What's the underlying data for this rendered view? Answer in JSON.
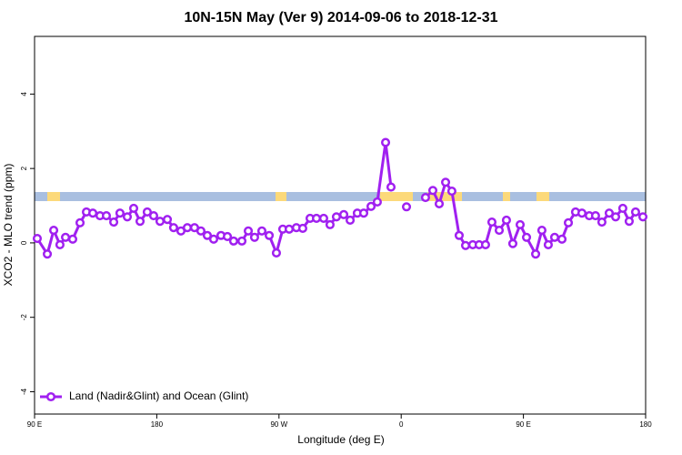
{
  "chart_data": {
    "type": "line",
    "title": "10N-15N May (Ver 9)   2014-09-06 to 2018-12-31",
    "x_label": "Longitude (deg E)",
    "y_label": "XCO2 - MLO trend (ppm)",
    "xlim": [
      90,
      540
    ],
    "ylim": [
      -4.6,
      5.55
    ],
    "xticks": [
      {
        "value": 90,
        "label": "90 E"
      },
      {
        "value": 180,
        "label": "180"
      },
      {
        "value": 270,
        "label": "90 W"
      },
      {
        "value": 360,
        "label": "0"
      },
      {
        "value": 450,
        "label": "90 E"
      },
      {
        "value": 540,
        "label": "180"
      }
    ],
    "yticks": [
      -4,
      -2,
      0,
      2,
      4
    ],
    "legend": "bottom-left",
    "x": [
      92.0,
      99.4,
      104.1,
      108.7,
      112.8,
      118.1,
      123.5,
      128.2,
      132.9,
      138.2,
      142.9,
      148.3,
      152.9,
      158.3,
      163.0,
      167.7,
      173.0,
      177.7,
      182.4,
      187.8,
      192.4,
      197.8,
      202.5,
      207.8,
      212.5,
      217.2,
      221.9,
      227.3,
      232.0,
      236.6,
      242.7,
      247.4,
      252.0,
      257.4,
      262.8,
      268.1,
      272.8,
      277.5,
      282.8,
      287.5,
      292.9,
      297.6,
      302.9,
      307.6,
      312.3,
      317.7,
      322.4,
      327.7,
      332.4,
      337.8,
      342.4,
      348.5,
      352.5,
      358.0,
      363.9,
      371.0,
      377.9,
      383.3,
      388.0,
      392.7,
      397.3,
      402.7,
      407.4,
      412.7,
      417.4,
      422.1,
      426.8,
      432.2,
      437.5,
      442.2,
      447.6,
      452.3,
      459.0,
      463.6,
      468.3,
      473.0,
      478.4,
      483.1,
      488.4,
      493.1,
      498.5,
      503.1,
      507.8,
      513.2,
      517.9,
      523.2,
      527.9,
      532.6,
      538.0
    ],
    "series": [
      {
        "name": "Land (Nadir&Glint) and Ocean (Glint)",
        "color": "#a020f0",
        "values": [
          0.12,
          -0.3,
          0.34,
          -0.05,
          0.15,
          0.1,
          0.54,
          0.83,
          0.8,
          0.73,
          0.73,
          0.56,
          0.8,
          0.7,
          0.93,
          0.58,
          0.83,
          0.73,
          0.58,
          0.63,
          0.41,
          0.32,
          0.41,
          0.41,
          0.32,
          0.2,
          0.1,
          0.2,
          0.17,
          0.05,
          0.05,
          0.32,
          0.15,
          0.32,
          0.2,
          -0.27,
          0.37,
          0.37,
          0.41,
          0.39,
          0.66,
          0.66,
          0.66,
          0.49,
          0.7,
          0.76,
          0.61,
          0.8,
          0.8,
          0.98,
          1.1,
          2.7,
          1.5,
          null,
          0.97,
          null,
          1.22,
          1.41,
          1.05,
          1.63,
          1.39,
          0.2,
          -0.07,
          -0.05,
          -0.05,
          -0.05,
          0.56,
          0.34,
          0.61,
          -0.02,
          0.49,
          0.15,
          -0.3,
          0.34,
          -0.05,
          0.15,
          0.1,
          0.54,
          0.83,
          0.8,
          0.73,
          0.73,
          0.56,
          0.8,
          0.7,
          0.93,
          0.58,
          0.83,
          0.7
        ]
      }
    ]
  }
}
